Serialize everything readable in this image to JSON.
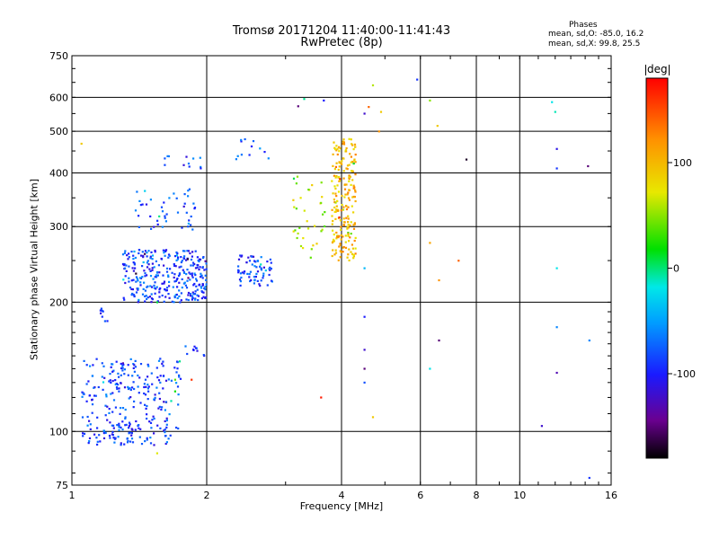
{
  "header": {
    "title_line1": "Tromsø 20171204 11:40:00-11:41:43",
    "title_line2": "RwPretec (8p)",
    "phases_title": "Phases",
    "phases_line1": "mean, sd,O: -85.0, 16.2",
    "phases_line2": "mean, sd,X: 99.8, 25.5"
  },
  "colorbar": {
    "unit": "deg",
    "ticks": [
      "100",
      "0",
      "-100"
    ],
    "tick_values": [
      100,
      0,
      -100
    ],
    "range": [
      -180,
      180
    ]
  },
  "chart_data": {
    "type": "scatter",
    "xlabel": "Frequency [MHz]",
    "ylabel": "Stationary phase Virtual Height [km]",
    "xscale": "log",
    "yscale": "log",
    "xlim": [
      1,
      16
    ],
    "ylim": [
      75,
      750
    ],
    "xticks": [
      "1",
      "2",
      "4",
      "6",
      "8",
      "10",
      "16"
    ],
    "xtick_values": [
      1,
      2,
      4,
      6,
      8,
      10,
      16
    ],
    "yticks": [
      "75",
      "100",
      "200",
      "300",
      "400",
      "500",
      "600",
      "750"
    ],
    "ytick_values": [
      75,
      100,
      200,
      300,
      400,
      500,
      600,
      750
    ],
    "grid": true,
    "clusters": [
      {
        "x": [
          1.05,
          1.75
        ],
        "y": [
          93,
          148
        ],
        "phase": -85,
        "count": 260
      },
      {
        "x": [
          1.16,
          1.42
        ],
        "y": [
          96,
          104
        ],
        "phase": -85,
        "count": 30
      },
      {
        "x": [
          1.3,
          2.0
        ],
        "y": [
          200,
          265
        ],
        "phase": -85,
        "count": 320
      },
      {
        "x": [
          1.38,
          1.9
        ],
        "y": [
          290,
          370
        ],
        "phase": -85,
        "count": 45
      },
      {
        "x": [
          1.15,
          1.2
        ],
        "y": [
          180,
          195
        ],
        "phase": -85,
        "count": 8
      },
      {
        "x": [
          1.6,
          1.95
        ],
        "y": [
          410,
          440
        ],
        "phase": -85,
        "count": 12
      },
      {
        "x": [
          1.75,
          1.98
        ],
        "y": [
          150,
          158
        ],
        "phase": -85,
        "count": 10
      },
      {
        "x": [
          2.35,
          2.8
        ],
        "y": [
          218,
          258
        ],
        "phase": -85,
        "count": 70
      },
      {
        "x": [
          2.3,
          2.8
        ],
        "y": [
          430,
          480
        ],
        "phase": -80,
        "count": 12
      },
      {
        "x": [
          3.1,
          3.7
        ],
        "y": [
          250,
          400
        ],
        "phase": 60,
        "count": 35
      },
      {
        "x": [
          3.8,
          4.3
        ],
        "y": [
          250,
          480
        ],
        "phase": 100,
        "count": 220
      }
    ],
    "points": [
      {
        "x": 1.05,
        "y": 468,
        "phase": 90
      },
      {
        "x": 3.2,
        "y": 572,
        "phase": -150
      },
      {
        "x": 3.3,
        "y": 595,
        "phase": -5
      },
      {
        "x": 3.65,
        "y": 590,
        "phase": -100
      },
      {
        "x": 3.6,
        "y": 120,
        "phase": 170
      },
      {
        "x": 4.5,
        "y": 550,
        "phase": -120
      },
      {
        "x": 4.5,
        "y": 185,
        "phase": -100
      },
      {
        "x": 4.5,
        "y": 155,
        "phase": -120
      },
      {
        "x": 4.5,
        "y": 140,
        "phase": -150
      },
      {
        "x": 4.5,
        "y": 130,
        "phase": -80
      },
      {
        "x": 4.5,
        "y": 240,
        "phase": -40
      },
      {
        "x": 4.6,
        "y": 570,
        "phase": 140
      },
      {
        "x": 4.7,
        "y": 640,
        "phase": 60
      },
      {
        "x": 4.7,
        "y": 108,
        "phase": 90
      },
      {
        "x": 4.85,
        "y": 500,
        "phase": 120
      },
      {
        "x": 4.9,
        "y": 555,
        "phase": 90
      },
      {
        "x": 5.9,
        "y": 660,
        "phase": -90
      },
      {
        "x": 6.3,
        "y": 590,
        "phase": 50
      },
      {
        "x": 6.3,
        "y": 275,
        "phase": 110
      },
      {
        "x": 6.3,
        "y": 140,
        "phase": -20
      },
      {
        "x": 6.55,
        "y": 515,
        "phase": 90
      },
      {
        "x": 6.6,
        "y": 225,
        "phase": 120
      },
      {
        "x": 6.6,
        "y": 163,
        "phase": -150
      },
      {
        "x": 7.3,
        "y": 250,
        "phase": 140
      },
      {
        "x": 7.6,
        "y": 430,
        "phase": -170
      },
      {
        "x": 11.2,
        "y": 103,
        "phase": -120
      },
      {
        "x": 11.8,
        "y": 585,
        "phase": -20
      },
      {
        "x": 12.0,
        "y": 555,
        "phase": -10
      },
      {
        "x": 12.1,
        "y": 455,
        "phase": -110
      },
      {
        "x": 12.1,
        "y": 410,
        "phase": -90
      },
      {
        "x": 12.1,
        "y": 240,
        "phase": -20
      },
      {
        "x": 12.1,
        "y": 175,
        "phase": -60
      },
      {
        "x": 12.1,
        "y": 137,
        "phase": -130
      },
      {
        "x": 14.2,
        "y": 415,
        "phase": -150
      },
      {
        "x": 14.3,
        "y": 163,
        "phase": -60
      },
      {
        "x": 14.3,
        "y": 78,
        "phase": -90
      },
      {
        "x": 1.55,
        "y": 89,
        "phase": 70
      },
      {
        "x": 1.55,
        "y": 200,
        "phase": 10
      },
      {
        "x": 1.7,
        "y": 132,
        "phase": 40
      },
      {
        "x": 1.7,
        "y": 124,
        "phase": 20
      },
      {
        "x": 1.85,
        "y": 132,
        "phase": 160
      }
    ]
  }
}
